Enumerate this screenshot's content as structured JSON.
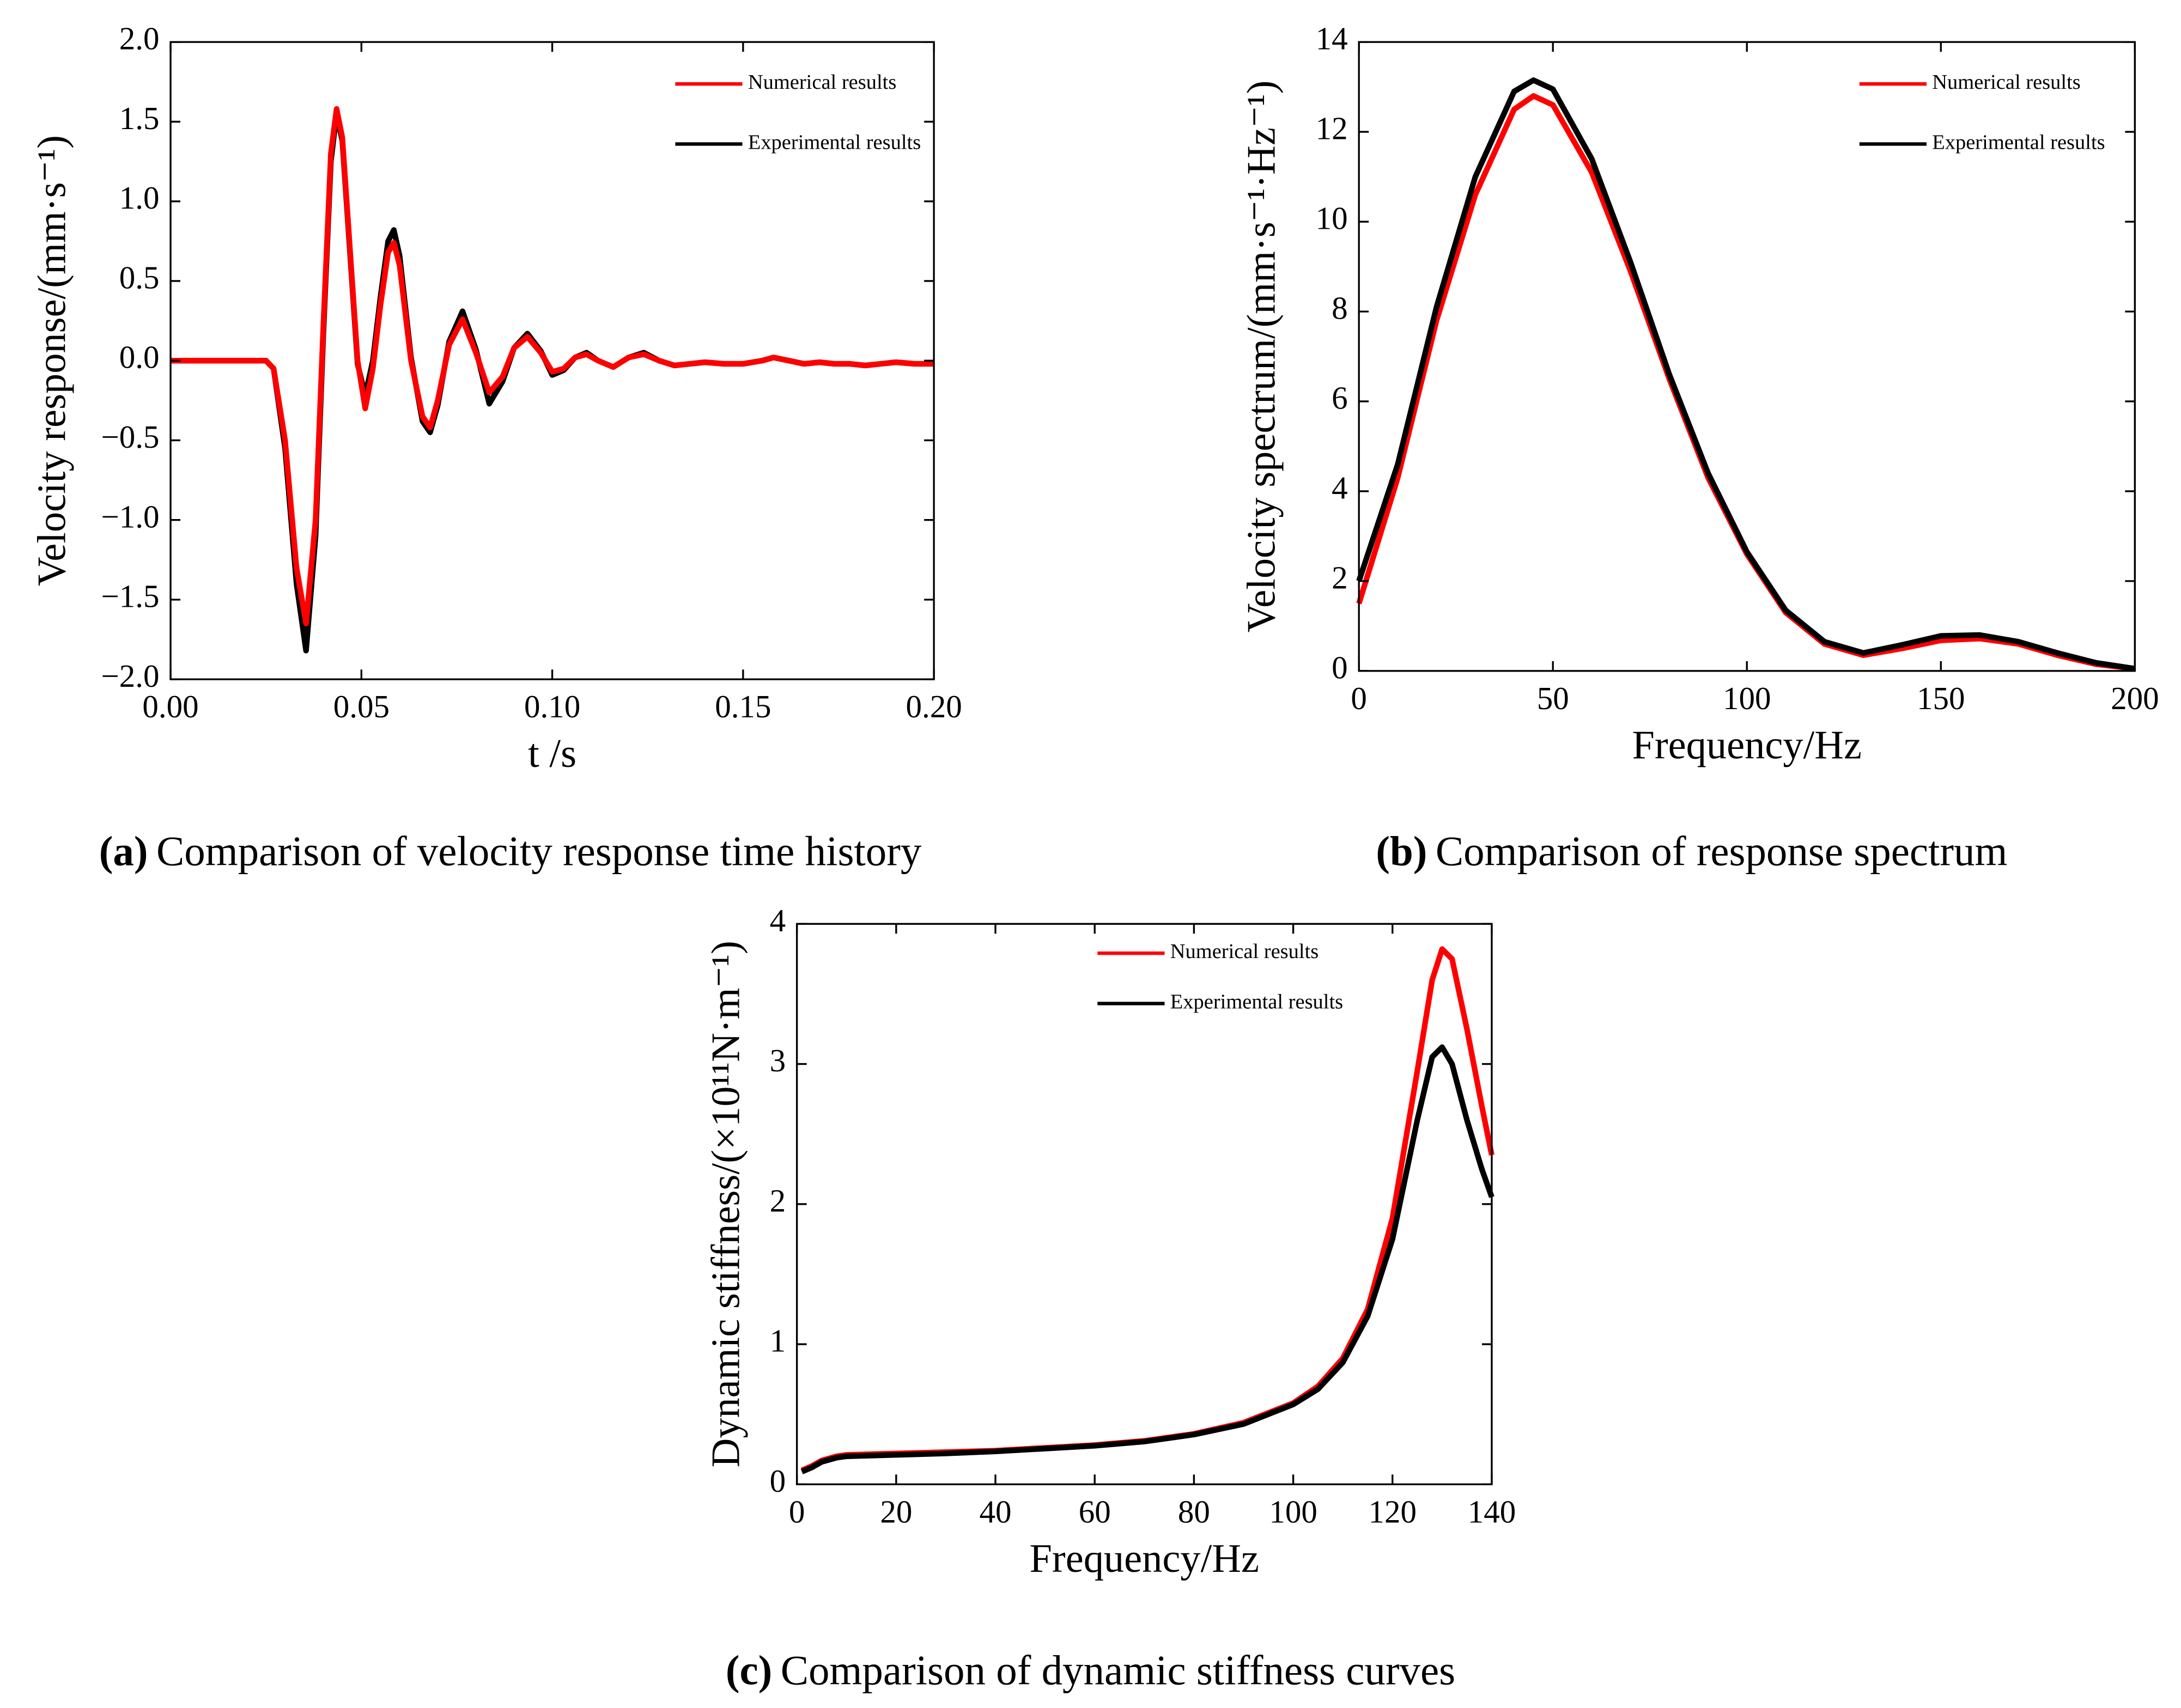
{
  "chart_data": [
    {
      "type": "line",
      "caption_label": "(a)",
      "caption": "Comparison of velocity response time history",
      "xlabel": "t /s",
      "ylabel": "Velocity response/(mm·s⁻¹)",
      "xlim": [
        0,
        0.2
      ],
      "ylim": [
        -2,
        2
      ],
      "xticks": [
        {
          "value": 0,
          "label": "0.00"
        },
        {
          "value": 0.05,
          "label": "0.05"
        },
        {
          "value": 0.1,
          "label": "0.10"
        },
        {
          "value": 0.15,
          "label": "0.15"
        },
        {
          "value": 0.2,
          "label": "0.20"
        }
      ],
      "yticks": [
        {
          "value": -2,
          "label": "−2.0"
        },
        {
          "value": -1.5,
          "label": "−1.5"
        },
        {
          "value": -1,
          "label": "−1.0"
        },
        {
          "value": -0.5,
          "label": "−0.5"
        },
        {
          "value": 0,
          "label": "0.0"
        },
        {
          "value": 0.5,
          "label": "0.5"
        },
        {
          "value": 1,
          "label": "1.0"
        },
        {
          "value": 1.5,
          "label": "1.5"
        },
        {
          "value": 2,
          "label": "2.0"
        }
      ],
      "x": [
        0,
        0.025,
        0.027,
        0.03,
        0.033,
        0.0355,
        0.038,
        0.04,
        0.042,
        0.0435,
        0.045,
        0.047,
        0.049,
        0.051,
        0.053,
        0.055,
        0.057,
        0.0585,
        0.06,
        0.063,
        0.066,
        0.068,
        0.07,
        0.073,
        0.0765,
        0.08,
        0.0835,
        0.087,
        0.09,
        0.0935,
        0.097,
        0.1,
        0.103,
        0.106,
        0.109,
        0.112,
        0.116,
        0.12,
        0.124,
        0.128,
        0.132,
        0.136,
        0.14,
        0.145,
        0.15,
        0.155,
        0.158,
        0.162,
        0.166,
        0.17,
        0.174,
        0.178,
        0.182,
        0.186,
        0.19,
        0.195,
        0.2
      ],
      "series": [
        {
          "name": "Experimental results",
          "color": "#000000",
          "values": [
            0,
            0,
            -0.05,
            -0.55,
            -1.4,
            -1.82,
            -1.1,
            0.15,
            1.25,
            1.55,
            1.38,
            0.68,
            -0.02,
            -0.22,
            0.0,
            0.4,
            0.75,
            0.82,
            0.66,
            0.02,
            -0.38,
            -0.45,
            -0.28,
            0.12,
            0.31,
            0.07,
            -0.27,
            -0.13,
            0.08,
            0.17,
            0.06,
            -0.09,
            -0.06,
            0.02,
            0.05,
            0.0,
            -0.04,
            0.02,
            0.05,
            0.0,
            -0.03,
            -0.02,
            -0.01,
            -0.02,
            -0.02,
            0.0,
            0.02,
            0.0,
            -0.02,
            -0.01,
            -0.02,
            -0.02,
            -0.03,
            -0.02,
            -0.01,
            -0.02,
            -0.02
          ]
        },
        {
          "name": "Numerical results",
          "color": "#ff0000",
          "values": [
            0,
            0,
            -0.05,
            -0.5,
            -1.3,
            -1.65,
            -1.0,
            0.2,
            1.3,
            1.58,
            1.4,
            0.7,
            0.0,
            -0.3,
            -0.05,
            0.35,
            0.68,
            0.74,
            0.6,
            0.0,
            -0.35,
            -0.42,
            -0.25,
            0.1,
            0.26,
            0.05,
            -0.2,
            -0.1,
            0.08,
            0.15,
            0.05,
            -0.07,
            -0.05,
            0.02,
            0.04,
            0.0,
            -0.04,
            0.02,
            0.04,
            0.0,
            -0.03,
            -0.02,
            -0.01,
            -0.02,
            -0.02,
            0.0,
            0.02,
            0.0,
            -0.02,
            -0.01,
            -0.02,
            -0.02,
            -0.03,
            -0.02,
            -0.01,
            -0.02,
            -0.02
          ]
        }
      ]
    },
    {
      "type": "line",
      "caption_label": "(b)",
      "caption": "Comparison of response spectrum",
      "xlabel": "Frequency/Hz",
      "ylabel": "Velocity spectrum/(mm·s⁻¹·Hz⁻¹)",
      "xlim": [
        0,
        200
      ],
      "ylim": [
        0,
        14
      ],
      "xticks": [
        0,
        50,
        100,
        150,
        200
      ],
      "yticks": [
        0,
        2,
        4,
        6,
        8,
        10,
        12,
        14
      ],
      "x": [
        0,
        10,
        20,
        30,
        40,
        45,
        50,
        60,
        70,
        80,
        90,
        100,
        110,
        120,
        130,
        140,
        150,
        160,
        170,
        180,
        190,
        200
      ],
      "series": [
        {
          "name": "Numerical results",
          "color": "#ff0000",
          "values": [
            1.5,
            4.3,
            7.8,
            10.6,
            12.5,
            12.8,
            12.6,
            11.1,
            8.9,
            6.5,
            4.3,
            2.6,
            1.3,
            0.6,
            0.35,
            0.5,
            0.68,
            0.72,
            0.6,
            0.35,
            0.15,
            0.05
          ]
        },
        {
          "name": "Experimental results",
          "color": "#000000",
          "values": [
            2.0,
            4.6,
            8.1,
            11.0,
            12.9,
            13.15,
            12.95,
            11.4,
            9.1,
            6.6,
            4.4,
            2.65,
            1.35,
            0.65,
            0.4,
            0.58,
            0.78,
            0.8,
            0.65,
            0.4,
            0.18,
            0.05
          ]
        }
      ]
    },
    {
      "type": "line",
      "caption_label": "(c)",
      "caption": "Comparison of dynamic stiffness curves",
      "xlabel": "Frequency/Hz",
      "ylabel": "Dynamic stiffness/(×10¹¹N·m⁻¹)",
      "xlim": [
        0,
        140
      ],
      "ylim": [
        0,
        4
      ],
      "xticks": [
        0,
        20,
        40,
        60,
        80,
        100,
        120,
        140
      ],
      "yticks": [
        0,
        1,
        2,
        3,
        4
      ],
      "x": [
        1,
        3,
        5,
        8,
        10,
        20,
        30,
        40,
        50,
        60,
        70,
        80,
        90,
        100,
        105,
        110,
        115,
        120,
        125,
        128,
        130,
        132,
        135,
        138,
        140
      ],
      "series": [
        {
          "name": "Numerical results",
          "color": "#ff0000",
          "values": [
            0.1,
            0.13,
            0.17,
            0.2,
            0.21,
            0.22,
            0.23,
            0.24,
            0.26,
            0.28,
            0.31,
            0.36,
            0.44,
            0.58,
            0.7,
            0.9,
            1.25,
            1.9,
            2.95,
            3.6,
            3.82,
            3.75,
            3.25,
            2.7,
            2.35
          ]
        },
        {
          "name": "Experimental results",
          "color": "#000000",
          "values": [
            0.09,
            0.12,
            0.16,
            0.19,
            0.2,
            0.21,
            0.22,
            0.235,
            0.255,
            0.275,
            0.305,
            0.355,
            0.43,
            0.57,
            0.68,
            0.87,
            1.2,
            1.75,
            2.6,
            3.05,
            3.12,
            3.0,
            2.6,
            2.25,
            2.05
          ]
        }
      ]
    }
  ]
}
